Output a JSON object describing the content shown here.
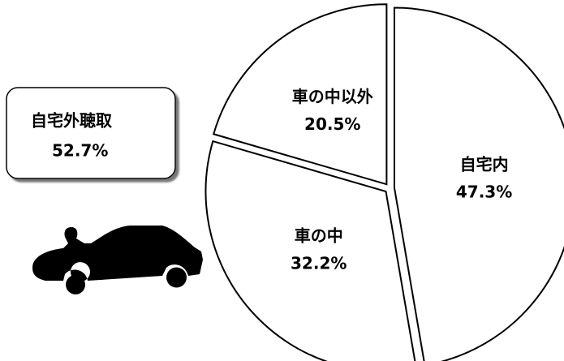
{
  "chart_data": {
    "type": "pie",
    "categories": [
      "自宅内",
      "車の中",
      "車の中以外"
    ],
    "values": [
      47.3,
      32.2,
      20.5
    ],
    "value_labels": [
      "47.3%",
      "32.2%",
      "20.5%"
    ],
    "color": "#ffffff",
    "stroke": "#000000",
    "annotation": {
      "text": "自宅外聴取",
      "value_label": "52.7%"
    }
  }
}
